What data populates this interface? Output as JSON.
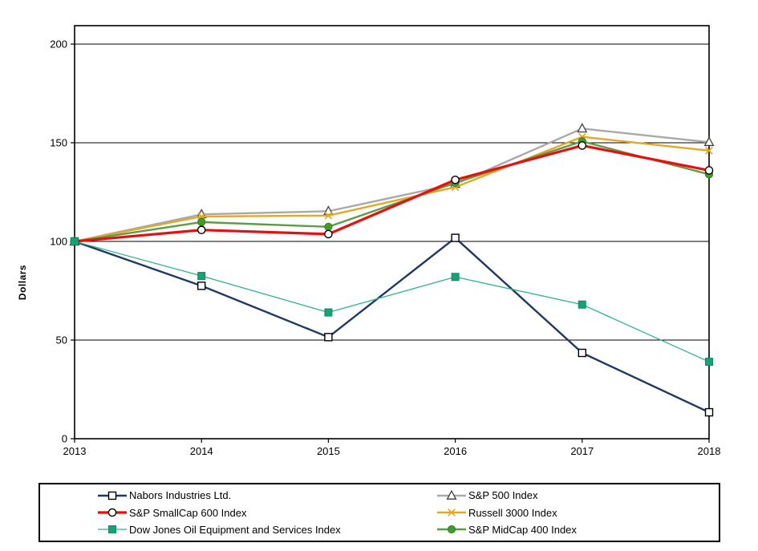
{
  "chart_data": {
    "type": "line",
    "title": "",
    "ylabel": "Dollars",
    "x": [
      2013,
      2014,
      2015,
      2016,
      2017,
      2018
    ],
    "yticks": [
      0,
      50,
      100,
      150,
      200
    ],
    "ylim": [
      0,
      209
    ],
    "grid": "horizontal-black-lines",
    "legend_position": "bottom-boxed-two-columns",
    "frame_color": "#000000",
    "series": [
      {
        "name": "Nabors Industries Ltd.",
        "color": "#1F3864",
        "line_width": 2.4,
        "marker": "open-square",
        "marker_stroke": "#000000",
        "marker_fill": "#FFFFFF",
        "values": [
          100,
          77.5,
          51.5,
          101.8,
          43.5,
          13.4
        ]
      },
      {
        "name": "S&P 500 Index",
        "color": "#A9A9A9",
        "line_width": 2.4,
        "marker": "open-triangle",
        "marker_stroke": "#3F3F3F",
        "marker_fill": "#FFFFFF",
        "values": [
          100,
          113.7,
          115.3,
          129.1,
          157.2,
          150.3
        ]
      },
      {
        "name": "S&P SmallCap 600 Index",
        "color": "#EA0E0E",
        "line_width": 3.2,
        "marker": "open-circle",
        "marker_stroke": "#000000",
        "marker_fill": "#FFFFFF",
        "values": [
          100,
          105.8,
          103.7,
          131.2,
          148.6,
          136.0
        ]
      },
      {
        "name": "Russell 3000 Index",
        "color": "#E2A926",
        "line_width": 2.4,
        "marker": "x-cross",
        "marker_stroke": "#E2A926",
        "marker_fill": "none",
        "values": [
          100,
          112.6,
          113.1,
          127.5,
          153.0,
          146.0
        ]
      },
      {
        "name": "Dow Jones Oil Equipment and Services Index",
        "color": "#2FB387",
        "line_width": 1.3,
        "marker": "filled-square",
        "marker_stroke": "#0F8A63",
        "marker_fill": "#17A176",
        "values": [
          100,
          82.5,
          64.0,
          82.0,
          68.0,
          39.0
        ]
      },
      {
        "name": "S&P MidCap 400 Index",
        "color": "#5B9C49",
        "line_width": 2.4,
        "marker": "filled-circle",
        "marker_stroke": "#33801F",
        "marker_fill": "#44992F",
        "values": [
          100,
          109.8,
          107.4,
          129.7,
          150.7,
          134.0
        ]
      }
    ],
    "draw_order": [
      1,
      3,
      5,
      2,
      0,
      4
    ]
  }
}
